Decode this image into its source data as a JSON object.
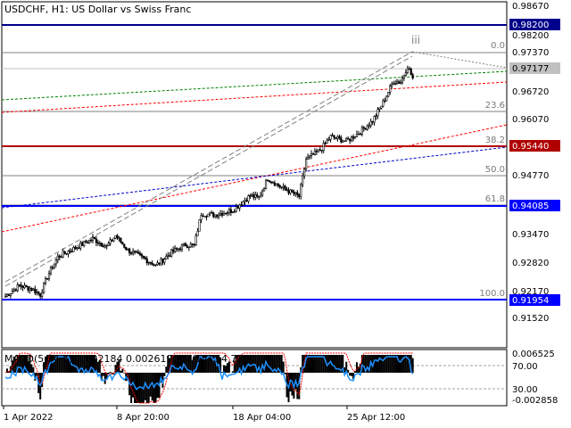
{
  "header": {
    "symbol_line": "USDCHF, H1:  US Dollar vs Swiss Franc"
  },
  "indicator": {
    "label_line": "MACD(5,34,5) 0.002184 0.002619 RSI(14) 54.72",
    "axis_labels": [
      "0.006525",
      "70.00",
      "30.00",
      "-0.002858"
    ]
  },
  "price_axis": {
    "labels": [
      "0.98670",
      "0.98200",
      "0.97370",
      "0.96720",
      "0.96070",
      "0.95440",
      "0.94770",
      "0.94085",
      "0.93470",
      "0.92820",
      "0.92170",
      "0.91954",
      "0.91520"
    ]
  },
  "price_lines": [
    {
      "name": "resistance-line-98200",
      "value": 0.982,
      "label": "0.98200",
      "color": "#00008b"
    },
    {
      "name": "support-line-95440",
      "value": 0.9544,
      "label": "0.95440",
      "color": "#b00000"
    },
    {
      "name": "support-line-94085",
      "value": 0.94085,
      "label": "0.94085",
      "color": "#0000ff"
    },
    {
      "name": "support-line-91954",
      "value": 0.91954,
      "label": "0.91954",
      "color": "#0000ff"
    }
  ],
  "current_price": {
    "value": 0.97177,
    "label": "0.97177"
  },
  "fibonacci": {
    "levels": [
      "0.0",
      "23.6",
      "38.2",
      "50.0",
      "61.8",
      "100.0"
    ]
  },
  "wave_label": "iii",
  "time_axis": {
    "labels": [
      "1 Apr 2022",
      "8 Apr 20:00",
      "18 Apr 04:00",
      "25 Apr 12:00"
    ]
  },
  "colors": {
    "background": "#ffffff",
    "candles": "#000000",
    "rsi": "#1e90ff",
    "macd_signal": "#ff0000",
    "trend_green": "#008000",
    "trend_red": "#ff0000",
    "trend_blue": "#0000cd"
  },
  "chart_data": {
    "type": "candlestick",
    "symbol": "USDCHF",
    "timeframe": "H1",
    "ylim": [
      0.9125,
      0.9887
    ],
    "price_path": [
      {
        "bar": 0,
        "price": 0.9238
      },
      {
        "bar": 8,
        "price": 0.9262
      },
      {
        "bar": 15,
        "price": 0.9255
      },
      {
        "bar": 20,
        "price": 0.9242
      },
      {
        "bar": 24,
        "price": 0.9282
      },
      {
        "bar": 30,
        "price": 0.9325
      },
      {
        "bar": 40,
        "price": 0.9345
      },
      {
        "bar": 50,
        "price": 0.9365
      },
      {
        "bar": 58,
        "price": 0.9348
      },
      {
        "bar": 63,
        "price": 0.9372
      },
      {
        "bar": 70,
        "price": 0.934
      },
      {
        "bar": 80,
        "price": 0.932
      },
      {
        "bar": 86,
        "price": 0.9306
      },
      {
        "bar": 95,
        "price": 0.9335
      },
      {
        "bar": 103,
        "price": 0.9352
      },
      {
        "bar": 108,
        "price": 0.935
      },
      {
        "bar": 112,
        "price": 0.942
      },
      {
        "bar": 120,
        "price": 0.9418
      },
      {
        "bar": 130,
        "price": 0.9428
      },
      {
        "bar": 140,
        "price": 0.946
      },
      {
        "bar": 145,
        "price": 0.9455
      },
      {
        "bar": 150,
        "price": 0.9498
      },
      {
        "bar": 158,
        "price": 0.9478
      },
      {
        "bar": 162,
        "price": 0.947
      },
      {
        "bar": 168,
        "price": 0.9458
      },
      {
        "bar": 172,
        "price": 0.954
      },
      {
        "bar": 180,
        "price": 0.956
      },
      {
        "bar": 186,
        "price": 0.959
      },
      {
        "bar": 195,
        "price": 0.958
      },
      {
        "bar": 202,
        "price": 0.9598
      },
      {
        "bar": 210,
        "price": 0.9625
      },
      {
        "bar": 216,
        "price": 0.9665
      },
      {
        "bar": 222,
        "price": 0.9712
      },
      {
        "bar": 226,
        "price": 0.971
      },
      {
        "bar": 230,
        "price": 0.9745
      },
      {
        "bar": 233,
        "price": 0.9718
      }
    ]
  }
}
